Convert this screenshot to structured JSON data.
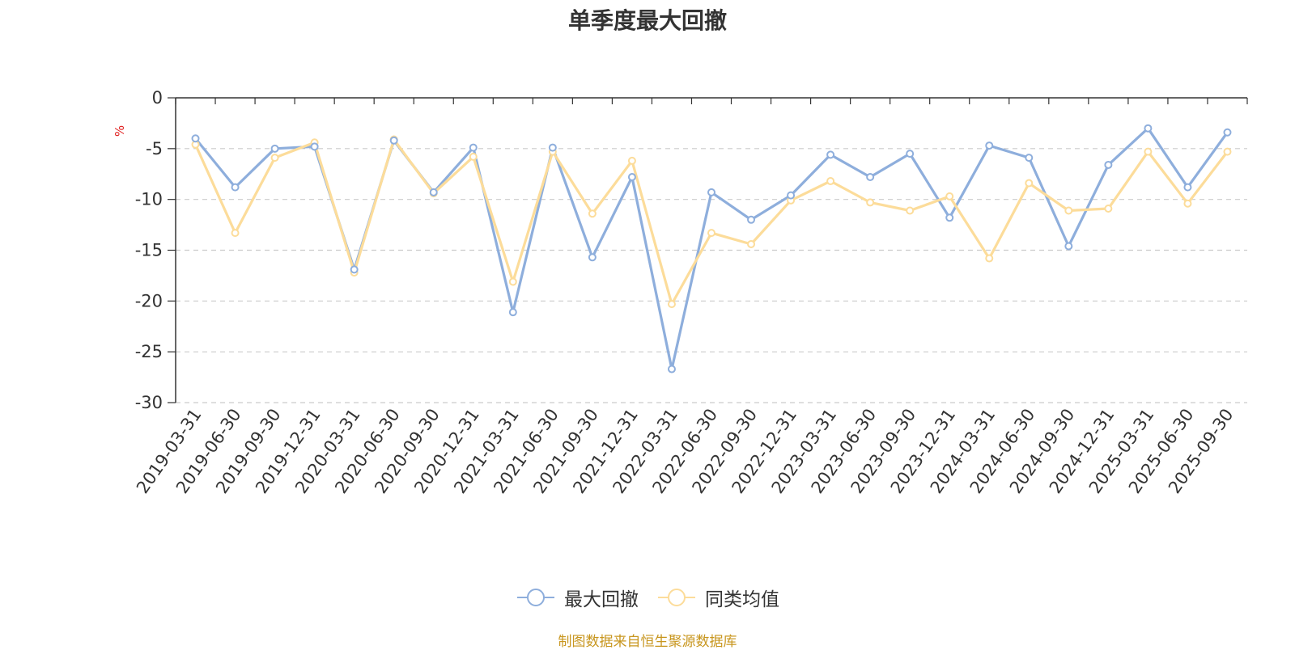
{
  "chart_data": {
    "type": "line",
    "title": "单季度最大回撤",
    "ylabel": "%",
    "ylim": [
      -30,
      0
    ],
    "yticks": [
      0,
      -5,
      -10,
      -15,
      -20,
      -25,
      -30
    ],
    "grid": true,
    "legend_position": "bottom",
    "categories": [
      "2019-03-31",
      "2019-06-30",
      "2019-09-30",
      "2019-12-31",
      "2020-03-31",
      "2020-06-30",
      "2020-09-30",
      "2020-12-31",
      "2021-03-31",
      "2021-06-30",
      "2021-09-30",
      "2021-12-31",
      "2022-03-31",
      "2022-06-30",
      "2022-09-30",
      "2022-12-31",
      "2023-03-31",
      "2023-06-30",
      "2023-09-30",
      "2023-12-31",
      "2024-03-31",
      "2024-06-30",
      "2024-09-30",
      "2024-12-31",
      "2025-03-31",
      "2025-06-30",
      "2025-09-30"
    ],
    "series": [
      {
        "name": "最大回撤",
        "color": "#8eaedc",
        "values": [
          -4.0,
          -8.8,
          -5.0,
          -4.8,
          -16.9,
          -4.2,
          -9.3,
          -4.9,
          -21.1,
          -4.9,
          -15.7,
          -7.8,
          -26.7,
          -9.3,
          -12.0,
          -9.6,
          -5.6,
          -7.8,
          -5.5,
          -11.8,
          -4.7,
          -5.9,
          -14.6,
          -6.6,
          -3.0,
          -8.8,
          -3.4
        ]
      },
      {
        "name": "同类均值",
        "color": "#fcdc9a",
        "values": [
          -4.6,
          -13.3,
          -5.9,
          -4.4,
          -17.2,
          -4.1,
          -9.4,
          -5.8,
          -18.1,
          -5.3,
          -11.4,
          -6.2,
          -20.3,
          -13.3,
          -14.4,
          -10.1,
          -8.2,
          -10.3,
          -11.1,
          -9.7,
          -15.8,
          -8.4,
          -11.1,
          -10.9,
          -5.3,
          -10.4,
          -5.3
        ]
      }
    ]
  },
  "source_note": "制图数据来自恒生聚源数据库"
}
